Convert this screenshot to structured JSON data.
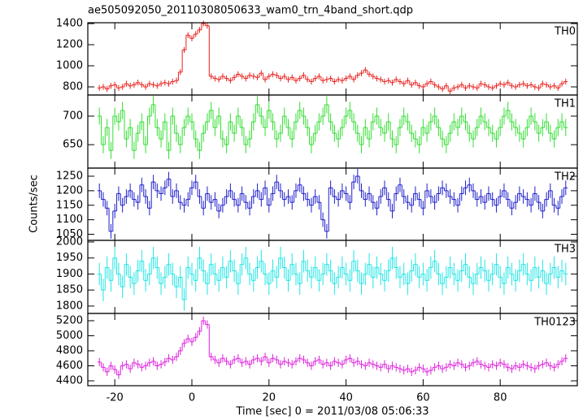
{
  "chart_data": {
    "type": "step",
    "title": "ae505092050_20110308050633_wam0_trn_4band_short.qdp",
    "xlabel": "Time [sec] 0 = 2011/03/08 05:06:33",
    "ylabel": "Counts/sec",
    "xlim": [
      -27,
      100
    ],
    "xticks": [
      -20,
      0,
      20,
      40,
      60,
      80
    ],
    "x": [
      -24,
      -23,
      -22,
      -21,
      -20,
      -19,
      -18,
      -17,
      -16,
      -15,
      -14,
      -13,
      -12,
      -11,
      -10,
      -9,
      -8,
      -7,
      -6,
      -5,
      -4,
      -3,
      -2,
      -1,
      0,
      1,
      2,
      3,
      4,
      5,
      6,
      7,
      8,
      9,
      10,
      11,
      12,
      13,
      14,
      15,
      16,
      17,
      18,
      19,
      20,
      21,
      22,
      23,
      24,
      25,
      26,
      27,
      28,
      29,
      30,
      31,
      32,
      33,
      34,
      35,
      36,
      37,
      38,
      39,
      40,
      41,
      42,
      43,
      44,
      45,
      46,
      47,
      48,
      49,
      50,
      51,
      52,
      53,
      54,
      55,
      56,
      57,
      58,
      59,
      60,
      61,
      62,
      63,
      64,
      65,
      66,
      67,
      68,
      69,
      70,
      71,
      72,
      73,
      74,
      75,
      76,
      77,
      78,
      79,
      80,
      81,
      82,
      83,
      84,
      85,
      86,
      87,
      88,
      89,
      90,
      91,
      92,
      93,
      94,
      95,
      96,
      97
    ],
    "panels": [
      {
        "name": "TH0",
        "color": "#e8201c",
        "ylim": [
          723,
          1408
        ],
        "yticks": [
          800,
          1000,
          1200,
          1400
        ],
        "error": 28,
        "values": [
          790,
          800,
          780,
          810,
          820,
          790,
          800,
          830,
          810,
          820,
          840,
          820,
          800,
          830,
          820,
          810,
          830,
          840,
          830,
          850,
          860,
          940,
          1150,
          1290,
          1260,
          1300,
          1340,
          1400,
          1380,
          900,
          880,
          870,
          900,
          880,
          860,
          890,
          920,
          900,
          880,
          910,
          900,
          890,
          930,
          870,
          900,
          920,
          910,
          880,
          900,
          870,
          890,
          860,
          880,
          910,
          870,
          850,
          880,
          900,
          860,
          870,
          880,
          850,
          870,
          860,
          880,
          900,
          870,
          910,
          930,
          960,
          920,
          900,
          880,
          870,
          850,
          860,
          840,
          870,
          850,
          830,
          860,
          820,
          840,
          810,
          800,
          830,
          850,
          820,
          800,
          780,
          810,
          760,
          790,
          800,
          820,
          790,
          810,
          800,
          790,
          830,
          820,
          800,
          790,
          810,
          830,
          820,
          840,
          810,
          800,
          820,
          830,
          810,
          820,
          800,
          790,
          830,
          820,
          800,
          810,
          790,
          830,
          850
        ]
      },
      {
        "name": "TH1",
        "color": "#33dd33",
        "ylim": [
          609,
          737
        ],
        "yticks": [
          650,
          700
        ],
        "error": 15,
        "values": [
          700,
          650,
          680,
          640,
          700,
          690,
          710,
          660,
          680,
          640,
          670,
          690,
          650,
          700,
          720,
          680,
          660,
          690,
          640,
          700,
          670,
          650,
          680,
          700,
          690,
          660,
          640,
          670,
          690,
          710,
          680,
          700,
          660,
          650,
          690,
          670,
          700,
          680,
          650,
          660,
          690,
          720,
          700,
          680,
          710,
          690,
          660,
          670,
          700,
          680,
          660,
          690,
          710,
          700,
          680,
          650,
          670,
          690,
          700,
          720,
          690,
          670,
          660,
          680,
          700,
          710,
          690,
          670,
          650,
          680,
          660,
          690,
          700,
          680,
          670,
          690,
          660,
          650,
          680,
          700,
          690,
          670,
          660,
          650,
          680,
          670,
          690,
          700,
          680,
          660,
          650,
          670,
          690,
          680,
          700,
          690,
          670,
          660,
          680,
          700,
          690,
          680,
          670,
          660,
          680,
          700,
          710,
          690,
          680,
          670,
          660,
          680,
          700,
          690,
          670,
          680,
          690,
          670,
          660,
          680,
          690,
          680
        ]
      },
      {
        "name": "TH2",
        "color": "#1f1fcc",
        "ylim": [
          1029,
          1278
        ],
        "yticks": [
          1050,
          1100,
          1150,
          1200,
          1250
        ],
        "error": 25,
        "values": [
          1200,
          1170,
          1140,
          1060,
          1130,
          1190,
          1150,
          1180,
          1200,
          1170,
          1160,
          1220,
          1180,
          1140,
          1230,
          1200,
          1190,
          1210,
          1240,
          1180,
          1200,
          1160,
          1150,
          1170,
          1210,
          1230,
          1180,
          1140,
          1190,
          1160,
          1170,
          1130,
          1150,
          1180,
          1200,
          1170,
          1150,
          1190,
          1160,
          1140,
          1180,
          1200,
          1170,
          1210,
          1150,
          1190,
          1230,
          1200,
          1170,
          1180,
          1160,
          1200,
          1220,
          1190,
          1170,
          1150,
          1180,
          1160,
          1100,
          1060,
          1210,
          1180,
          1170,
          1200,
          1190,
          1160,
          1230,
          1250,
          1200,
          1170,
          1190,
          1160,
          1140,
          1180,
          1210,
          1170,
          1130,
          1190,
          1220,
          1180,
          1160,
          1150,
          1190,
          1170,
          1140,
          1200,
          1180,
          1160,
          1190,
          1210,
          1200,
          1180,
          1170,
          1150,
          1190,
          1210,
          1220,
          1200,
          1170,
          1180,
          1160,
          1190,
          1170,
          1150,
          1180,
          1200,
          1170,
          1140,
          1160,
          1190,
          1180,
          1170,
          1150,
          1190,
          1160,
          1130,
          1170,
          1200,
          1150,
          1140,
          1180,
          1210
        ]
      },
      {
        "name": "TH3",
        "color": "#22e5e5",
        "ylim": [
          1777,
          2005
        ],
        "yticks": [
          1800,
          1850,
          1900,
          1950,
          2000
        ],
        "error": 35,
        "values": [
          1900,
          1850,
          1920,
          1880,
          1950,
          1900,
          1860,
          1930,
          1890,
          1870,
          1910,
          1940,
          1880,
          1900,
          1950,
          1920,
          1870,
          1890,
          1930,
          1900,
          1860,
          1890,
          1820,
          1920,
          1900,
          1880,
          1950,
          1910,
          1870,
          1930,
          1900,
          1880,
          1920,
          1890,
          1940,
          1910,
          1870,
          1930,
          1950,
          1900,
          1880,
          1920,
          1940,
          1900,
          1870,
          1910,
          1890,
          1950,
          1920,
          1880,
          1930,
          1900,
          1870,
          1940,
          1910,
          1890,
          1920,
          1880,
          1900,
          1930,
          1910,
          1870,
          1890,
          1920,
          1900,
          1880,
          1940,
          1910,
          1870,
          1900,
          1930,
          1890,
          1920,
          1900,
          1880,
          1910,
          1950,
          1920,
          1890,
          1900,
          1870,
          1910,
          1930,
          1890,
          1900,
          1880,
          1920,
          1940,
          1900,
          1870,
          1890,
          1920,
          1900,
          1880,
          1910,
          1930,
          1890,
          1870,
          1900,
          1920,
          1910,
          1880,
          1900,
          1930,
          1890,
          1870,
          1920,
          1900,
          1880,
          1910,
          1930,
          1900,
          1880,
          1920,
          1890,
          1910,
          1870,
          1900,
          1920,
          1890,
          1910,
          1900
        ]
      },
      {
        "name": "TH0123",
        "color": "#dd22dd",
        "ylim": [
          4335,
          5297
        ],
        "yticks": [
          4400,
          4600,
          4800,
          5000,
          5200
        ],
        "error": 55,
        "values": [
          4650,
          4580,
          4520,
          4600,
          4550,
          4480,
          4600,
          4620,
          4560,
          4640,
          4620,
          4580,
          4600,
          4640,
          4660,
          4600,
          4620,
          4650,
          4700,
          4680,
          4720,
          4800,
          4900,
          4960,
          4920,
          4980,
          5060,
          5200,
          5150,
          4720,
          4680,
          4640,
          4700,
          4660,
          4620,
          4680,
          4700,
          4640,
          4660,
          4620,
          4680,
          4700,
          4660,
          4720,
          4640,
          4700,
          4680,
          4620,
          4660,
          4640,
          4620,
          4660,
          4700,
          4680,
          4640,
          4600,
          4660,
          4680,
          4620,
          4640,
          4600,
          4660,
          4640,
          4620,
          4680,
          4700,
          4640,
          4660,
          4620,
          4600,
          4640,
          4620,
          4600,
          4580,
          4620,
          4560,
          4600,
          4580,
          4560,
          4540,
          4560,
          4520,
          4540,
          4580,
          4560,
          4520,
          4540,
          4580,
          4600,
          4560,
          4580,
          4620,
          4600,
          4640,
          4620,
          4580,
          4600,
          4640,
          4660,
          4620,
          4600,
          4580,
          4620,
          4600,
          4640,
          4620,
          4580,
          4560,
          4600,
          4580,
          4620,
          4600,
          4580,
          4560,
          4600,
          4620,
          4640,
          4600,
          4580,
          4620,
          4660,
          4700
        ]
      }
    ]
  }
}
